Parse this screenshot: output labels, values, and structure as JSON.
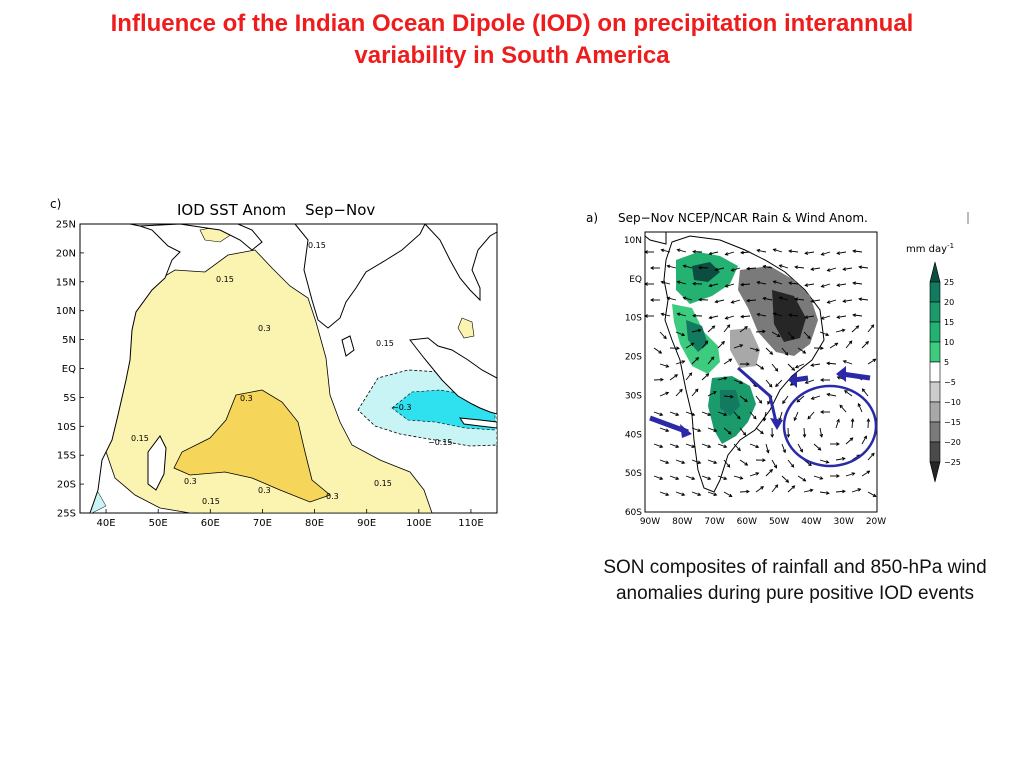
{
  "slide": {
    "title_line1": "Influence of the Indian Ocean Dipole (IOD) on precipitation interannual",
    "title_line2": "variability in South America",
    "caption": "SON composites of rainfall and 850-hPa wind anomalies during pure positive IOD events"
  },
  "map_c": {
    "panel_label": "c)",
    "title": "IOD SST Anom    Sep−Nov",
    "lat_labels": [
      "25N",
      "20N",
      "15N",
      "10N",
      "5N",
      "EQ",
      "5S",
      "10S",
      "15S",
      "20S",
      "25S"
    ],
    "lon_labels": [
      "40E",
      "50E",
      "60E",
      "70E",
      "80E",
      "90E",
      "100E",
      "110E"
    ],
    "contour_labels": [
      "0.15",
      "0.3",
      "0.15",
      "0.3",
      "0.15",
      "−0.3",
      "−0.15",
      "0.3",
      "0.15",
      "0.3",
      "0.3",
      "0.15",
      "0.15"
    ],
    "colors": {
      "positive_light": "#fbf3b0",
      "positive_dark": "#f5d65a",
      "negative_light": "#c8f4f6",
      "negative_dark": "#2fe0ee"
    }
  },
  "map_a": {
    "panel_label": "a)",
    "title": "Sep−Nov NCEP/NCAR Rain & Wind Anom.",
    "lat_labels": [
      "10N",
      "EQ",
      "10S",
      "20S",
      "30S",
      "40S",
      "50S",
      "60S"
    ],
    "lon_labels": [
      "90W",
      "80W",
      "70W",
      "60W",
      "50W",
      "40W",
      "30W",
      "20W"
    ],
    "colorbar_unit": "mm day",
    "colorbar_unit_exp": "-1",
    "colorbar_ticks": [
      "25",
      "20",
      "15",
      "10",
      "5",
      "−5",
      "−10",
      "−15",
      "−20",
      "−25"
    ],
    "colorbar_colors": [
      "#0d4d40",
      "#127a5e",
      "#1b9b6c",
      "#24b273",
      "#3dcb7f",
      "#ffffff",
      "#cccccc",
      "#a8a8a8",
      "#7a7a7a",
      "#4a4a4a",
      "#262626"
    ],
    "circulation_color": "#2a2aa8"
  }
}
